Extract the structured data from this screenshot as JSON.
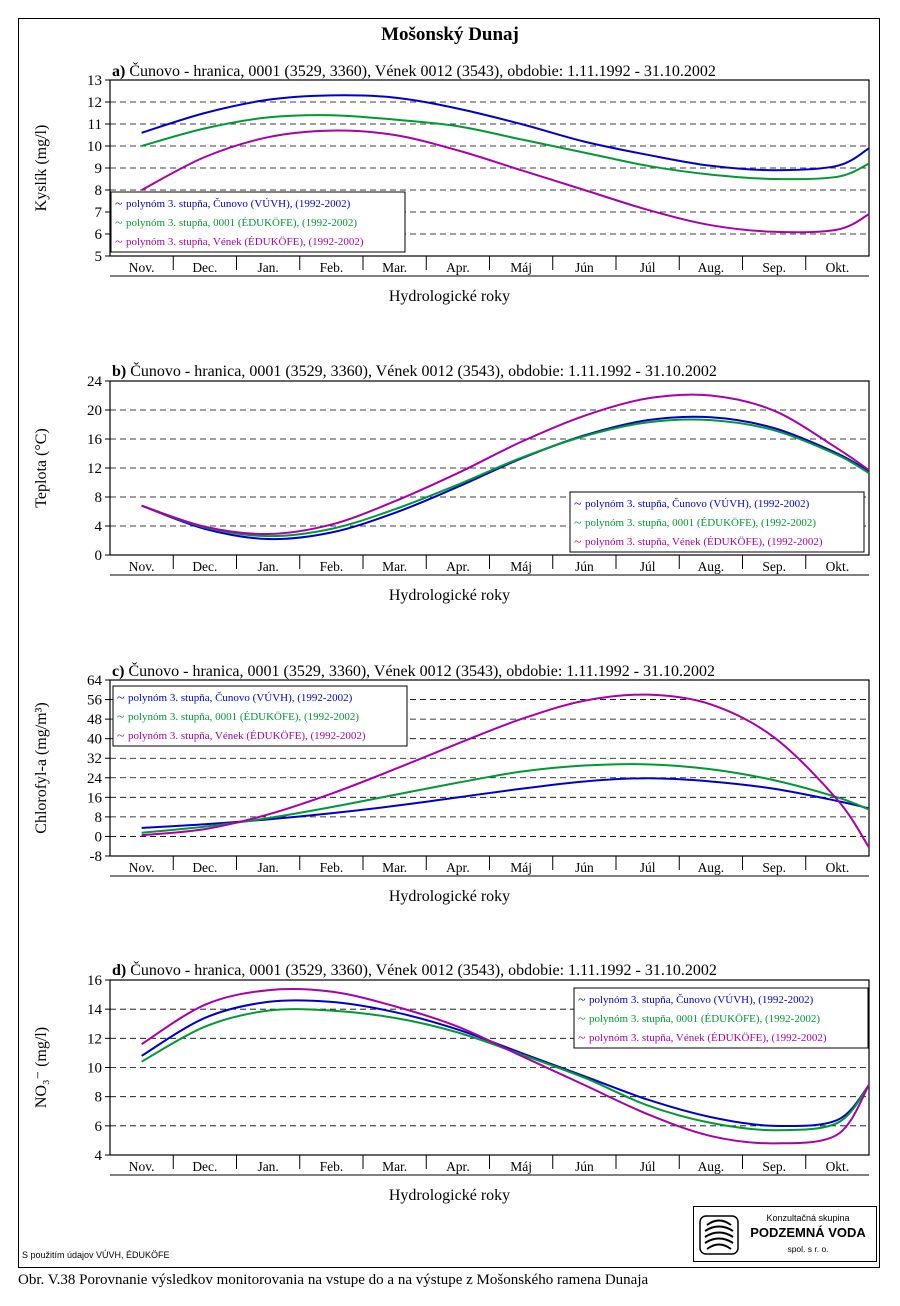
{
  "page": {
    "title": "Mošonský Dunaj",
    "source_note": "S použitím údajov VÚVH, ÉDUKÖFE",
    "caption": "Obr. V.38 Porovnanie výsledkov monitorovania na vstupe do a na výstupe z Mošonského ramena Dunaja",
    "logo": {
      "top": "Konzultačná skupina",
      "name": "PODZEMNÁ VODA",
      "sub": "spol. s r. o."
    }
  },
  "colors": {
    "cunovo": "#0000cc",
    "edukofe_0001": "#009933",
    "venek": "#aa00aa",
    "grid": "#000000"
  },
  "chart_data": [
    {
      "type": "line",
      "label": "a)",
      "title": "Čunovo - hranica, 0001 (3529, 3360), Vének 0012 (3543), obdobie: 1.11.1992 - 31.10.2002",
      "xlabel": "Hydrologické roky",
      "ylabel": "Kyslík  (mg/l)",
      "ylim": [
        5,
        13
      ],
      "yticks": [
        "5",
        "6",
        "7",
        "8",
        "9",
        "10",
        "11",
        "12",
        "13"
      ],
      "categories": [
        "Nov.",
        "Dec.",
        "Jan.",
        "Feb.",
        "Mar.",
        "Apr.",
        "Máj",
        "Jún",
        "Júl",
        "Aug.",
        "Sep.",
        "Okt."
      ],
      "x": [
        0,
        1,
        2,
        3,
        4,
        5,
        6,
        7,
        8,
        9,
        10,
        11,
        11.5
      ],
      "grid": true,
      "legend_position": "bottom-left",
      "series": [
        {
          "name": "polynóm 3. stupňa, Čunovo (VÚVH), (1992-2002)",
          "color": "#0000cc",
          "values": [
            10.6,
            11.5,
            12.1,
            12.3,
            12.2,
            11.7,
            11.0,
            10.2,
            9.6,
            9.1,
            8.9,
            9.1,
            9.9
          ]
        },
        {
          "name": "polynóm 3. stupňa, 0001 (ÉDUKÖFE), (1992-2002)",
          "color": "#009933",
          "values": [
            10.0,
            10.8,
            11.3,
            11.4,
            11.2,
            10.9,
            10.3,
            9.7,
            9.1,
            8.7,
            8.5,
            8.6,
            9.2
          ]
        },
        {
          "name": "polynóm 3. stupňa, Vének (ÉDUKÖFE), (1992-2002)",
          "color": "#aa00aa",
          "values": [
            8.0,
            9.5,
            10.4,
            10.7,
            10.5,
            9.8,
            8.9,
            8.0,
            7.1,
            6.4,
            6.1,
            6.2,
            6.9
          ]
        }
      ]
    },
    {
      "type": "line",
      "label": "b)",
      "title": "Čunovo - hranica, 0001 (3529, 3360), Vének 0012 (3543), obdobie: 1.11.1992 - 31.10.2002",
      "xlabel": "Hydrologické roky",
      "ylabel": "Teplota  (°C)",
      "ylim": [
        0,
        24
      ],
      "yticks": [
        "0",
        "4",
        "8",
        "12",
        "16",
        "20",
        "24"
      ],
      "categories": [
        "Nov.",
        "Dec.",
        "Jan.",
        "Feb.",
        "Mar.",
        "Apr.",
        "Máj",
        "Jún",
        "Júl",
        "Aug.",
        "Sep.",
        "Okt."
      ],
      "x": [
        0,
        1,
        2,
        3,
        4,
        5,
        6,
        7,
        8,
        9,
        10,
        11,
        11.5
      ],
      "grid": true,
      "legend_position": "bottom-right",
      "series": [
        {
          "name": "polynóm 3. stupňa, Čunovo (VÚVH), (1992-2002)",
          "color": "#0000cc",
          "values": [
            6.8,
            3.6,
            2.2,
            3.1,
            5.8,
            9.4,
            13.3,
            16.5,
            18.6,
            19.0,
            17.5,
            14.0,
            11.5
          ]
        },
        {
          "name": "polynóm 3. stupňa, 0001 (ÉDUKÖFE), (1992-2002)",
          "color": "#009933",
          "values": [
            6.8,
            3.8,
            2.6,
            3.6,
            6.3,
            9.7,
            13.4,
            16.4,
            18.3,
            18.6,
            17.2,
            13.8,
            11.3
          ]
        },
        {
          "name": "polynóm 3. stupňa, Vének (ÉDUKÖFE), (1992-2002)",
          "color": "#aa00aa",
          "values": [
            6.8,
            3.9,
            2.9,
            4.2,
            7.4,
            11.3,
            15.6,
            19.2,
            21.6,
            22.0,
            19.9,
            14.7,
            11.7
          ]
        }
      ]
    },
    {
      "type": "line",
      "label": "c)",
      "title": "Čunovo - hranica, 0001 (3529, 3360), Vének 0012 (3543), obdobie: 1.11.1992 - 31.10.2002",
      "xlabel": "Hydrologické roky",
      "ylabel": "Chlorofyl-a  (mg/m³)",
      "ylim": [
        -8,
        64
      ],
      "yticks": [
        "-8",
        "0",
        "8",
        "16",
        "24",
        "32",
        "40",
        "48",
        "56",
        "64"
      ],
      "categories": [
        "Nov.",
        "Dec.",
        "Jan.",
        "Feb.",
        "Mar.",
        "Apr.",
        "Máj",
        "Jún",
        "Júl",
        "Aug.",
        "Sep.",
        "Okt."
      ],
      "x": [
        0,
        1,
        2,
        3,
        4,
        5,
        6,
        7,
        8,
        9,
        10,
        11,
        11.5
      ],
      "grid": true,
      "legend_position": "top-left",
      "series": [
        {
          "name": "polynóm 3. stupňa, Čunovo (VÚVH), (1992-2002)",
          "color": "#0000cc",
          "values": [
            3.5,
            5.0,
            7.0,
            9.5,
            12.5,
            16.0,
            19.5,
            22.5,
            23.8,
            22.5,
            19.5,
            14.5,
            11.5
          ]
        },
        {
          "name": "polynóm 3. stupňa, 0001 (ÉDUKÖFE), (1992-2002)",
          "color": "#009933",
          "values": [
            1.5,
            4.0,
            7.5,
            12.0,
            17.0,
            22.0,
            26.5,
            29.0,
            29.5,
            27.5,
            23.0,
            16.0,
            11.0
          ]
        },
        {
          "name": "polynóm 3. stupňa, Vének (ÉDUKÖFE), (1992-2002)",
          "color": "#aa00aa",
          "values": [
            0.5,
            3.0,
            9.0,
            17.5,
            27.5,
            38.0,
            48.0,
            55.5,
            58.0,
            54.0,
            40.5,
            15.0,
            -4.5
          ]
        }
      ]
    },
    {
      "type": "line",
      "label": "d)",
      "title": "Čunovo - hranica, 0001 (3529, 3360), Vének 0012 (3543), obdobie: 1.11.1992 - 31.10.2002",
      "xlabel": "Hydrologické roky",
      "ylabel": "NO₃⁻  (mg/l)",
      "ylim": [
        4,
        16
      ],
      "yticks": [
        "4",
        "6",
        "8",
        "10",
        "12",
        "14",
        "16"
      ],
      "categories": [
        "Nov.",
        "Dec.",
        "Jan.",
        "Feb.",
        "Mar.",
        "Apr.",
        "Máj",
        "Jún",
        "Júl",
        "Aug.",
        "Sep.",
        "Okt."
      ],
      "x": [
        0,
        1,
        2,
        3,
        4,
        5,
        6,
        7,
        8,
        9,
        10,
        11,
        11.5
      ],
      "grid": true,
      "legend_position": "top-right",
      "series": [
        {
          "name": "polynóm 3. stupňa, Čunovo (VÚVH), (1992-2002)",
          "color": "#0000cc",
          "values": [
            10.8,
            13.4,
            14.5,
            14.5,
            13.8,
            12.6,
            11.0,
            9.4,
            7.8,
            6.6,
            6.0,
            6.4,
            8.8
          ]
        },
        {
          "name": "polynóm 3. stupňa, 0001 (ÉDUKÖFE), (1992-2002)",
          "color": "#009933",
          "values": [
            10.4,
            12.8,
            13.9,
            13.9,
            13.4,
            12.4,
            10.9,
            9.3,
            7.4,
            6.2,
            5.7,
            6.2,
            8.8
          ]
        },
        {
          "name": "polynóm 3. stupňa, Vének (ÉDUKÖFE), (1992-2002)",
          "color": "#aa00aa",
          "values": [
            11.6,
            14.3,
            15.3,
            15.2,
            14.2,
            12.8,
            10.8,
            8.8,
            6.8,
            5.3,
            4.8,
            5.4,
            8.8
          ]
        }
      ]
    }
  ]
}
